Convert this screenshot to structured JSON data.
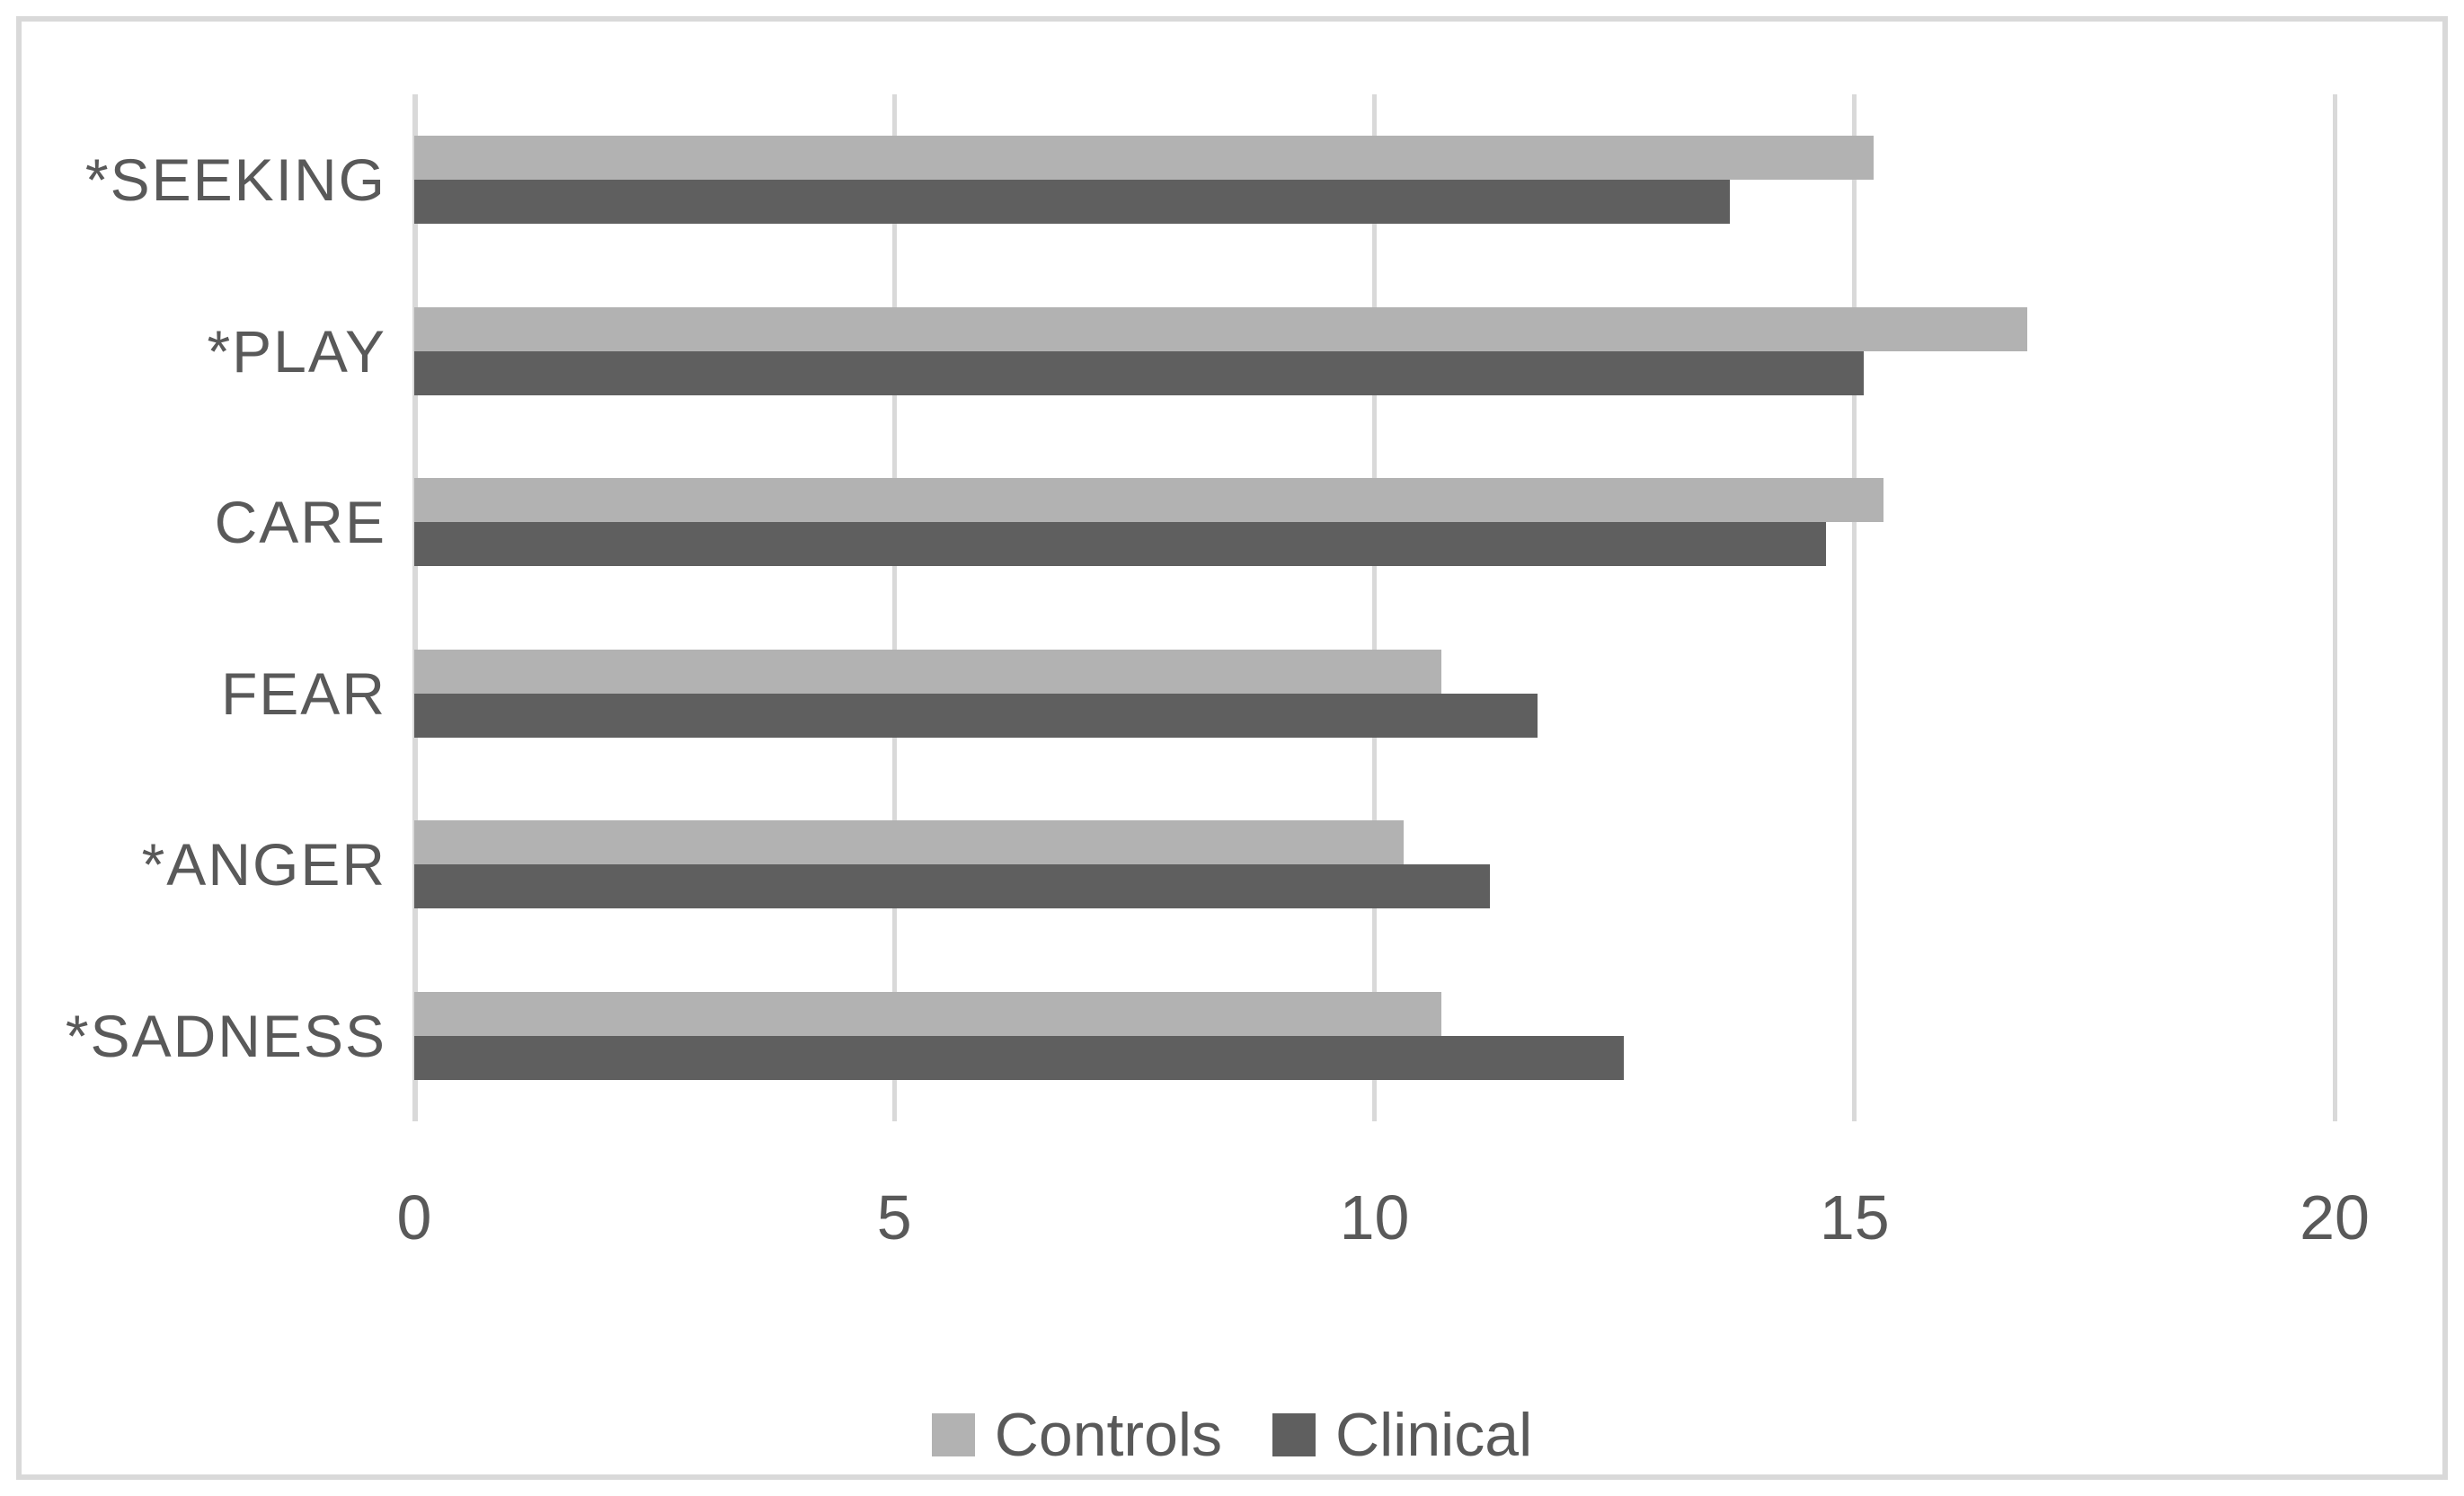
{
  "chart_data": {
    "type": "bar",
    "orientation": "horizontal",
    "title": "",
    "xlabel": "",
    "ylabel": "",
    "categories": [
      "*SEEKING",
      "*PLAY",
      "CARE",
      "FEAR",
      "*ANGER",
      "*SADNESS"
    ],
    "series": [
      {
        "name": "Controls",
        "color": "#b2b2b2",
        "values": [
          15.2,
          16.8,
          15.3,
          10.7,
          10.3,
          10.7
        ]
      },
      {
        "name": "Clinical",
        "color": "#5f5f5f",
        "values": [
          13.7,
          15.1,
          14.7,
          11.7,
          11.2,
          12.6
        ]
      }
    ],
    "xlim": [
      0,
      20
    ],
    "xticks": [
      0,
      5,
      10,
      15,
      20
    ],
    "grid": true,
    "legend_position": "bottom"
  },
  "colors": {
    "text": "#595959",
    "gridline": "#d9d9d9",
    "frame_border": "#d9d9d9",
    "background": "#ffffff"
  }
}
